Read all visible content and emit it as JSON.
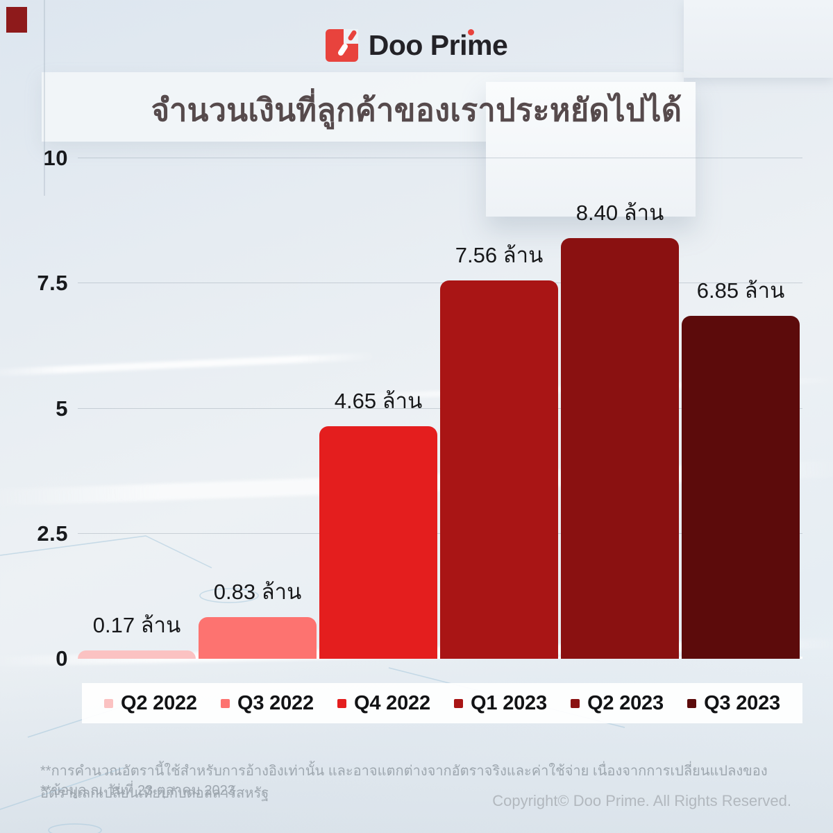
{
  "logo": {
    "text": "Doo Prime",
    "accent_color": "#E8433D"
  },
  "title": "จำนวนเงินที่ลูกค้าของเราประหยัดไปได้",
  "chart_data": {
    "type": "bar",
    "title": "จำนวนเงินที่ลูกค้าของเราประหยัดไปได้",
    "categories": [
      "Q2 2022",
      "Q3 2022",
      "Q4 2022",
      "Q1 2023",
      "Q2 2023",
      "Q3 2023"
    ],
    "values": [
      0.17,
      0.83,
      4.65,
      7.56,
      8.4,
      6.85
    ],
    "value_labels": [
      "0.17 ล้าน",
      "0.83 ล้าน",
      "4.65 ล้าน",
      "7.56 ล้าน",
      "8.40 ล้าน",
      "6.85 ล้าน"
    ],
    "bar_colors": [
      "#FBC2C2",
      "#FD7370",
      "#E41E1E",
      "#A91515",
      "#8A1111",
      "#5C0B0B"
    ],
    "unit": "ล้าน",
    "ylim": [
      0,
      10
    ],
    "y_ticks": [
      0,
      2.5,
      5,
      7.5,
      10
    ],
    "y_tick_labels": [
      "0",
      "2.5",
      "5",
      "7.5",
      "10"
    ],
    "grid": true,
    "legend_position": "bottom"
  },
  "footer": {
    "footnote_line1": "**การคำนวณอัตรานี้ใช้สำหรับการอ้างอิงเท่านั้น และอาจแตกต่างจากอัตราจริงและค่าใช้จ่าย เนื่องจากการเปลี่ยนแปลงของอัตราแลกเปลี่ยนเทียบกับดอลลาร์สหรัฐ",
    "footnote_line2": "**ข้อมูล ณ วันที่ 23 ตุลาคม 2023",
    "copyright": "Copyright© Doo Prime. All Rights Reserved."
  }
}
